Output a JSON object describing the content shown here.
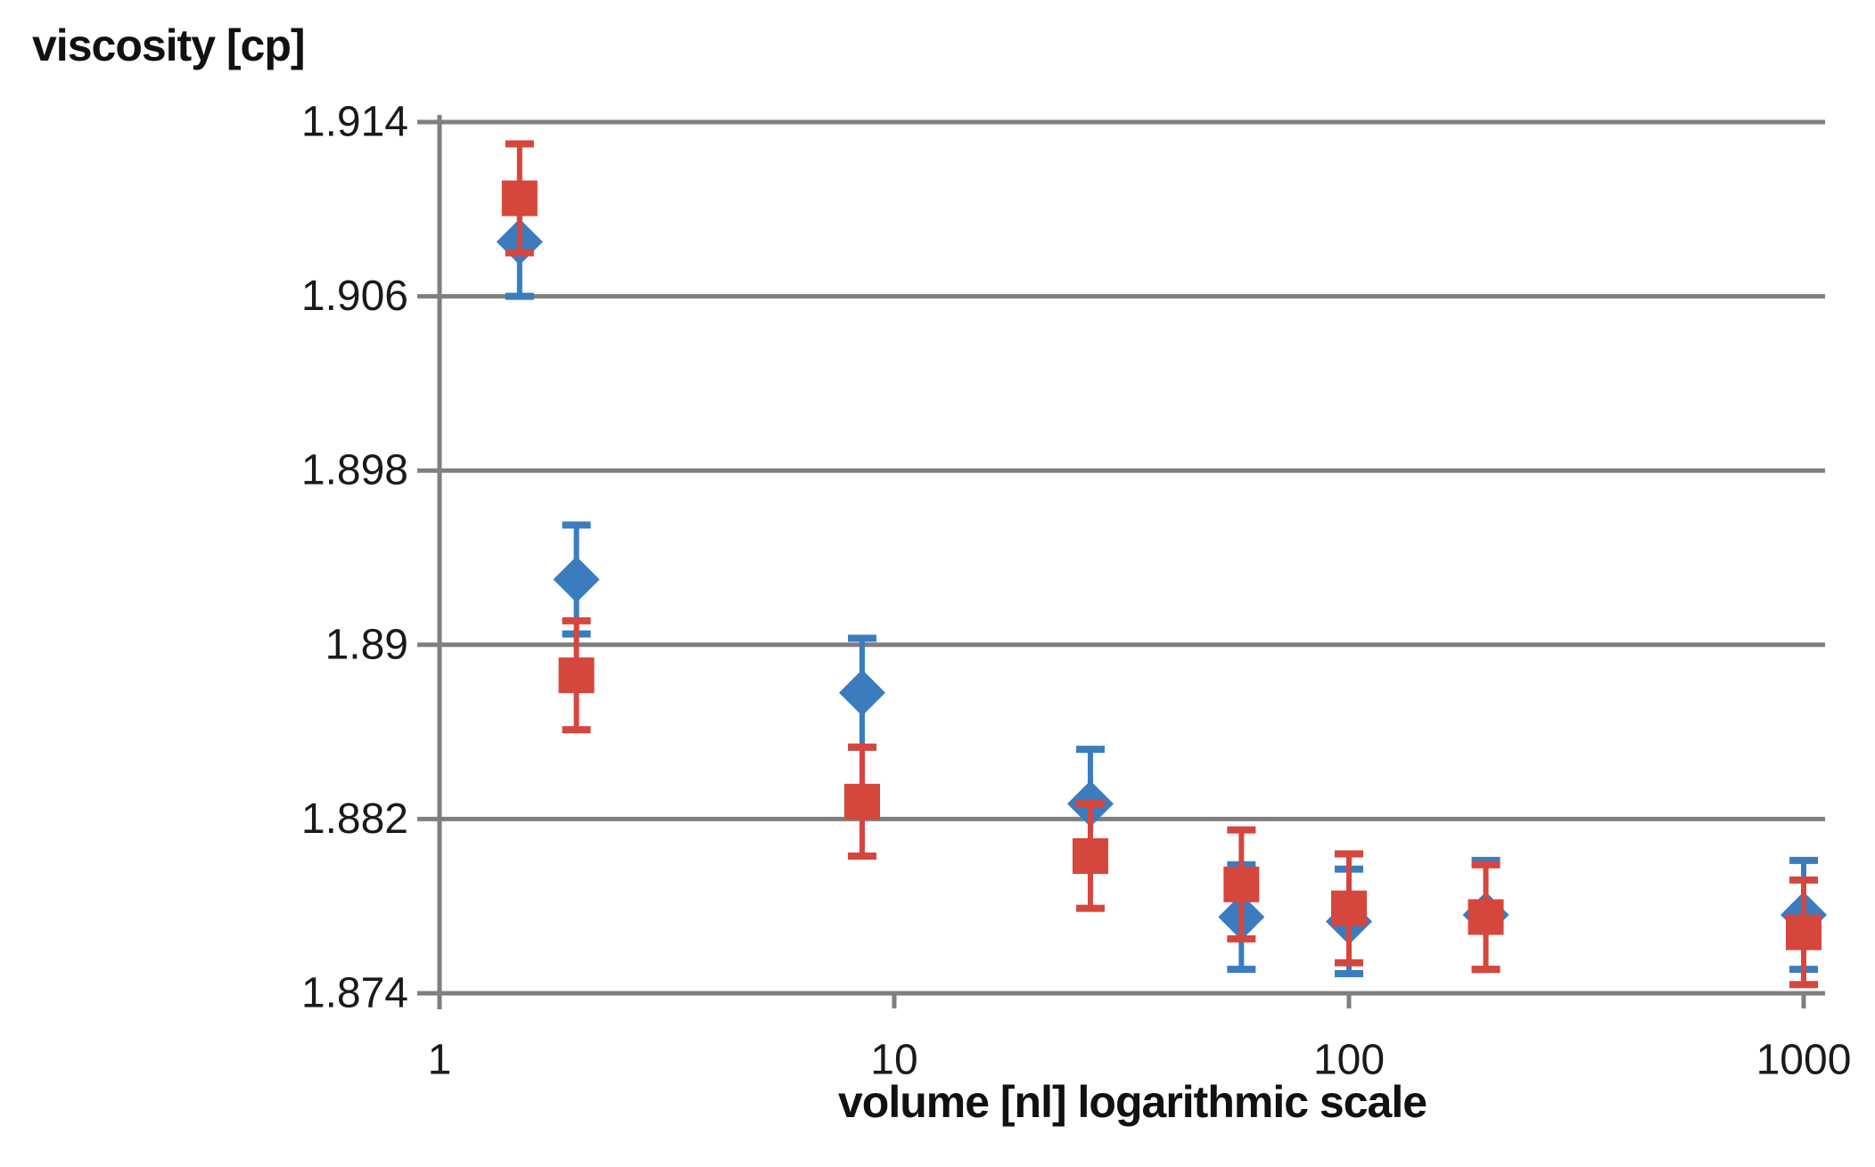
{
  "chart": {
    "title": "viscosity [cp]",
    "xlabel": "volume [nl] logarithmic scale"
  },
  "colors": {
    "blue_series": "#3B7CBF",
    "red_series": "#D5463D",
    "grid": "#7F7F7F",
    "axis": "#7F7F7F",
    "text": "#1a1a1a",
    "background": "#ffffff"
  },
  "chart_data": {
    "type": "scatter",
    "title": "viscosity [cp]",
    "xlabel": "volume [nl] logarithmic scale",
    "ylabel": "viscosity [cp]",
    "x_axis": {
      "scale": "log10",
      "ticks": [
        1,
        10,
        100,
        1000
      ],
      "tick_labels": [
        "1",
        "10",
        "100",
        "1000"
      ],
      "range": [
        1,
        1120
      ]
    },
    "y_axis": {
      "ticks": [
        1.874,
        1.882,
        1.89,
        1.898,
        1.906,
        1.914
      ],
      "tick_labels": [
        "1.874",
        "1.882",
        "1.89",
        "1.898",
        "1.906",
        "1.914"
      ],
      "range": [
        1.874,
        1.914
      ]
    },
    "grid": "horizontal-only",
    "legend": "none",
    "error_bars": true,
    "x": [
      1.5,
      2,
      8.5,
      27,
      58,
      100,
      200,
      1000
    ],
    "series": [
      {
        "name": "blue diamonds",
        "marker": "diamond",
        "color": "#3B7CBF",
        "values": [
          1.9085,
          1.893,
          1.8878,
          1.8827,
          1.8775,
          1.8773,
          1.8776,
          1.8776
        ],
        "errors": [
          0.0025,
          0.0025,
          0.0025,
          0.0025,
          0.0024,
          0.0024,
          0.0025,
          0.0025
        ]
      },
      {
        "name": "red squares",
        "marker": "square",
        "color": "#D5463D",
        "values": [
          1.9105,
          1.8886,
          1.8828,
          1.8803,
          1.879,
          1.8779,
          1.8775,
          1.8768
        ],
        "errors": [
          0.0025,
          0.0025,
          0.0025,
          0.0024,
          0.0025,
          0.0025,
          0.0024,
          0.0024
        ]
      }
    ]
  }
}
